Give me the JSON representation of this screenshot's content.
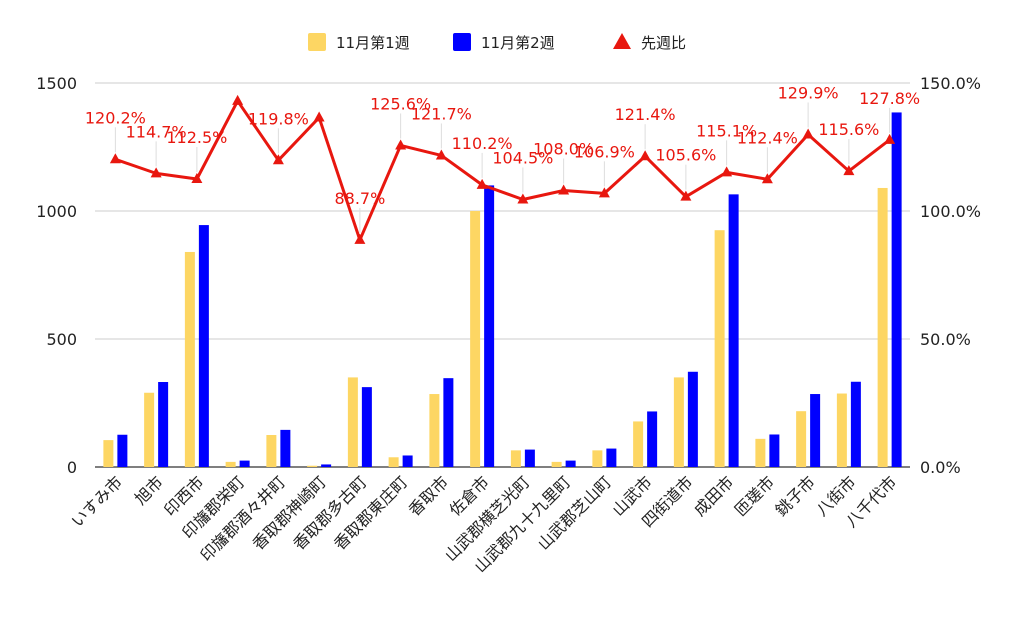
{
  "chart_data": {
    "type": "bar",
    "categories": [
      "いすみ市",
      "旭市",
      "印西市",
      "印旛郡栄町",
      "印旛郡酒々井町",
      "香取郡神崎町",
      "香取郡多古町",
      "香取郡東庄町",
      "香取市",
      "佐倉市",
      "山武郡横芝光町",
      "山武郡九十九里町",
      "山武郡芝山町",
      "山武市",
      "四街道市",
      "成田市",
      "匝瑳市",
      "銚子市",
      "八街市",
      "八千代市"
    ],
    "series": [
      {
        "name": "11月第1週",
        "axis": "left",
        "type": "bar",
        "color": "#fdd663",
        "values": [
          105,
          290,
          840,
          20,
          125,
          5,
          350,
          38,
          285,
          1000,
          65,
          20,
          65,
          178,
          350,
          925,
          110,
          218,
          287,
          1090
        ]
      },
      {
        "name": "11月第2週",
        "axis": "left",
        "type": "bar",
        "color": "#0000ff",
        "values": [
          126,
          332,
          945,
          25,
          145,
          10,
          312,
          45,
          347,
          1100,
          68,
          25,
          72,
          217,
          372,
          1065,
          127,
          285,
          333,
          1385
        ]
      },
      {
        "name": "先週比",
        "axis": "right",
        "type": "line",
        "color": "#e8170f",
        "values": [
          120.2,
          114.7,
          112.5,
          143.0,
          119.8,
          136.5,
          88.7,
          125.6,
          121.7,
          110.2,
          104.5,
          108.0,
          106.9,
          121.4,
          105.6,
          115.1,
          112.4,
          129.9,
          115.6,
          127.8
        ],
        "labels": [
          "120.2%",
          "114.7%",
          "112.5%",
          "",
          "119.8%",
          "",
          "88.7%",
          "125.6%",
          "121.7%",
          "110.2%",
          "104.5%",
          "108.0%",
          "106.9%",
          "121.4%",
          "105.6%",
          "115.1%",
          "112.4%",
          "129.9%",
          "115.6%",
          "127.8%"
        ]
      }
    ],
    "y_left": {
      "min": 0,
      "max": 1500,
      "ticks": [
        "0",
        "500",
        "1000",
        "1500"
      ]
    },
    "y_right": {
      "min": 0,
      "max": 150,
      "ticks": [
        "0.0%",
        "50.0%",
        "100.0%",
        "150.0%"
      ]
    },
    "grid": true,
    "legend": "top"
  }
}
